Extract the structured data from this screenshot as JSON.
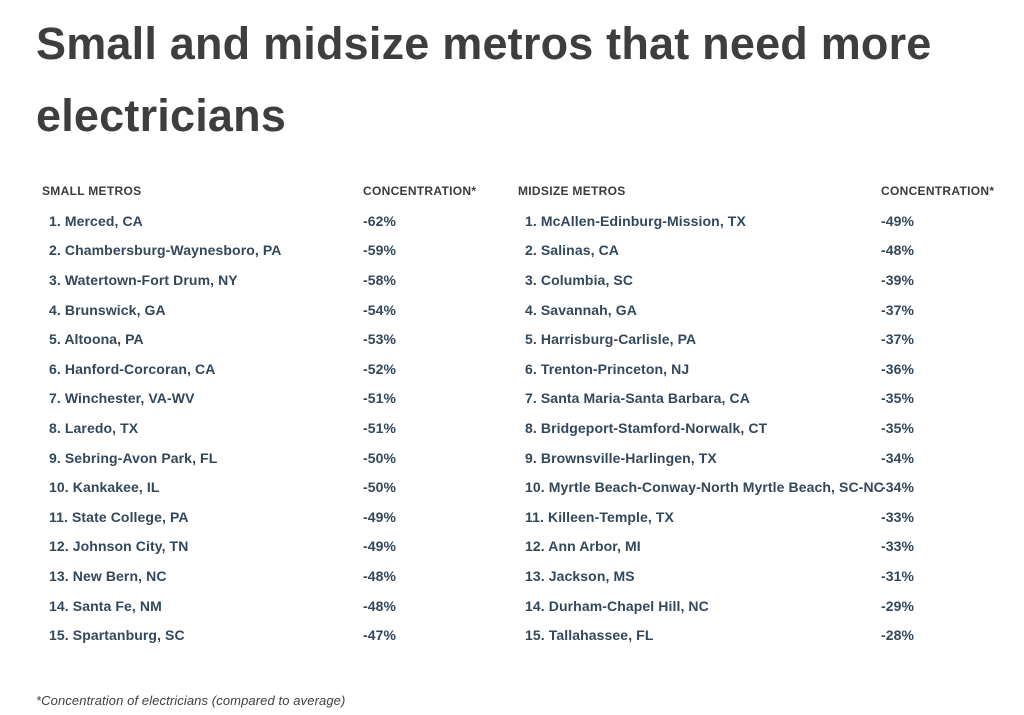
{
  "colors": {
    "background": "#ffffff",
    "title_text": "#3e3e3e",
    "header_text": "#3b3b3b",
    "row_text": "#33475b"
  },
  "chart_data": {
    "type": "table",
    "title": "Small and midsize metros that need more electricians",
    "title_lines": [
      "Small and midsize metros that need more",
      "electricians"
    ],
    "footnote": "*Concentration of electricians (compared to average)",
    "tables": [
      {
        "name_header": "SMALL METROS",
        "value_header": "CONCENTRATION*",
        "rows": [
          {
            "label": "1. Merced, CA",
            "value": "-62%"
          },
          {
            "label": "2. Chambersburg-Waynesboro, PA",
            "value": "-59%"
          },
          {
            "label": "3. Watertown-Fort Drum, NY",
            "value": "-58%"
          },
          {
            "label": "4. Brunswick, GA",
            "value": "-54%"
          },
          {
            "label": "5. Altoona, PA",
            "value": "-53%"
          },
          {
            "label": "6. Hanford-Corcoran, CA",
            "value": "-52%"
          },
          {
            "label": "7. Winchester, VA-WV",
            "value": "-51%"
          },
          {
            "label": "8. Laredo, TX",
            "value": "-51%"
          },
          {
            "label": "9. Sebring-Avon Park, FL",
            "value": "-50%"
          },
          {
            "label": "10. Kankakee, IL",
            "value": "-50%"
          },
          {
            "label": "11. State College, PA",
            "value": "-49%"
          },
          {
            "label": "12. Johnson City, TN",
            "value": "-49%"
          },
          {
            "label": "13. New Bern, NC",
            "value": "-48%"
          },
          {
            "label": "14. Santa Fe, NM",
            "value": "-48%"
          },
          {
            "label": "15. Spartanburg, SC",
            "value": "-47%"
          }
        ]
      },
      {
        "name_header": "MIDSIZE METROS",
        "value_header": "CONCENTRATION*",
        "rows": [
          {
            "label": "1. McAllen-Edinburg-Mission, TX",
            "value": "-49%"
          },
          {
            "label": "2. Salinas, CA",
            "value": "-48%"
          },
          {
            "label": "3. Columbia, SC",
            "value": "-39%"
          },
          {
            "label": "4. Savannah, GA",
            "value": "-37%"
          },
          {
            "label": "5. Harrisburg-Carlisle, PA",
            "value": "-37%"
          },
          {
            "label": "6. Trenton-Princeton, NJ",
            "value": "-36%"
          },
          {
            "label": "7. Santa Maria-Santa Barbara, CA",
            "value": "-35%"
          },
          {
            "label": "8. Bridgeport-Stamford-Norwalk, CT",
            "value": "-35%"
          },
          {
            "label": "9. Brownsville-Harlingen, TX",
            "value": "-34%"
          },
          {
            "label": "10. Myrtle Beach-Conway-North Myrtle Beach, SC-NC",
            "value": "-34%"
          },
          {
            "label": "11. Killeen-Temple, TX",
            "value": "-33%"
          },
          {
            "label": "12. Ann Arbor, MI",
            "value": "-33%"
          },
          {
            "label": "13. Jackson, MS",
            "value": "-31%"
          },
          {
            "label": "14. Durham-Chapel Hill, NC",
            "value": "-29%"
          },
          {
            "label": "15. Tallahassee, FL",
            "value": "-28%"
          }
        ]
      }
    ]
  }
}
